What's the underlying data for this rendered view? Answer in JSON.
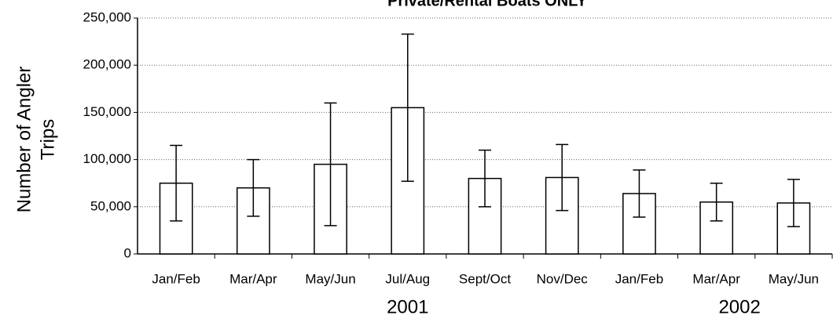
{
  "chart_data": {
    "type": "bar",
    "title": "Private/Rental Boats ONLY",
    "ylabel": [
      "Number of Angler",
      "Trips"
    ],
    "categories": [
      "Jan/Feb",
      "Mar/Apr",
      "May/Jun",
      "Jul/Aug",
      "Sept/Oct",
      "Nov/Dec",
      "Jan/Feb",
      "Mar/Apr",
      "May/Jun"
    ],
    "values": [
      75000,
      70000,
      95000,
      155000,
      80000,
      81000,
      64000,
      55000,
      54000
    ],
    "errors": [
      40000,
      30000,
      65000,
      78000,
      30000,
      35000,
      25000,
      20000,
      25000
    ],
    "groups": [
      "2001",
      "2002"
    ],
    "color": "#ffffff",
    "ylim": [
      0,
      250000
    ],
    "yticks": [
      0,
      {
        "value": 50000,
        "label": "50,000"
      },
      {
        "value": 100000,
        "label": "100,000"
      },
      {
        "value": 150000,
        "label": "150,000"
      },
      {
        "value": 200000,
        "label": "200,000"
      },
      {
        "value": 250000,
        "label": "250,000"
      }
    ],
    "grid": true
  }
}
